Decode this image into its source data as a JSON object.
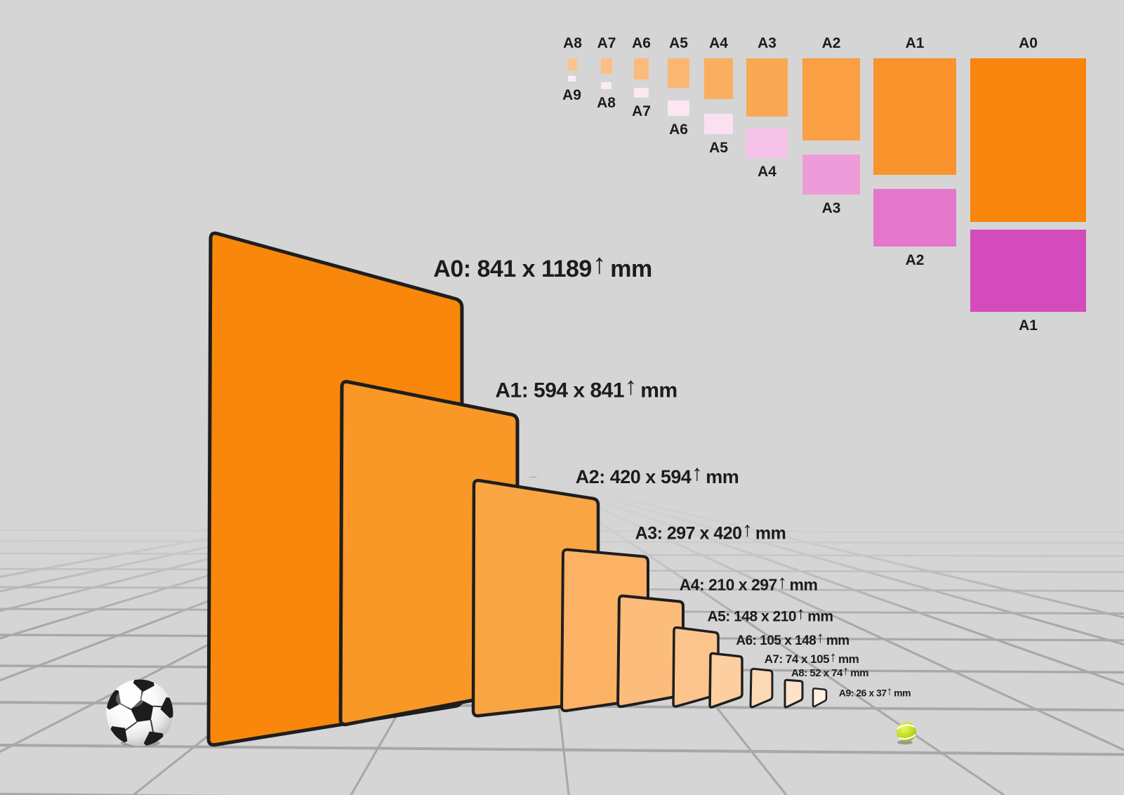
{
  "background_color": "#d5d5d5",
  "text_color": "#1c1c1c",
  "outline_color": "#1e1e1e",
  "grid_color": "#a8a8a8",
  "unit_label": "mm",
  "arrow_glyph": "↑",
  "main_sheets": [
    {
      "name": "A0",
      "width_mm": 841,
      "height_mm": 1189,
      "label": "A0: 841 x 1189",
      "color": "#F8870B"
    },
    {
      "name": "A1",
      "width_mm": 594,
      "height_mm": 841,
      "label": "A1: 594 x 841",
      "color": "#F99827"
    },
    {
      "name": "A2",
      "width_mm": 420,
      "height_mm": 594,
      "label": "A2: 420 x 594",
      "color": "#FAA544"
    },
    {
      "name": "A3",
      "width_mm": 297,
      "height_mm": 420,
      "label": "A3: 297 x 420",
      "color": "#FBB265"
    },
    {
      "name": "A4",
      "width_mm": 210,
      "height_mm": 297,
      "label": "A4: 210 x 297",
      "color": "#FCBC7C"
    },
    {
      "name": "A5",
      "width_mm": 148,
      "height_mm": 210,
      "label": "A5: 148 x 210",
      "color": "#FCC48D"
    },
    {
      "name": "A6",
      "width_mm": 105,
      "height_mm": 148,
      "label": "A6: 105 x 148",
      "color": "#FDCE9F"
    },
    {
      "name": "A7",
      "width_mm": 74,
      "height_mm": 105,
      "label": "A7: 74 x 105",
      "color": "#FDD8B4"
    },
    {
      "name": "A8",
      "width_mm": 52,
      "height_mm": 74,
      "label": "A8: 52 x 74",
      "color": "#FEE3CA"
    },
    {
      "name": "A9",
      "width_mm": 26,
      "height_mm": 37,
      "label": "A9: 26 x 37",
      "color": "#FEEFDE"
    }
  ],
  "size_panel": {
    "columns": [
      {
        "portrait": "A8",
        "portrait_color": "#FCC38B",
        "landscape": "A9",
        "landscape_color": "#FCEDF8"
      },
      {
        "portrait": "A7",
        "portrait_color": "#FCBF83",
        "landscape": "A8",
        "landscape_color": "#FBEAF5"
      },
      {
        "portrait": "A6",
        "portrait_color": "#FBBB7B",
        "landscape": "A7",
        "landscape_color": "#FBE8F3"
      },
      {
        "portrait": "A5",
        "portrait_color": "#FBB674",
        "landscape": "A6",
        "landscape_color": "#FBE6F2"
      },
      {
        "portrait": "A4",
        "portrait_color": "#FAAF60",
        "landscape": "A5",
        "landscape_color": "#FAE0F0"
      },
      {
        "portrait": "A3",
        "portrait_color": "#F9A854",
        "landscape": "A4",
        "landscape_color": "#F6C2E9"
      },
      {
        "portrait": "A2",
        "portrait_color": "#FA9F44",
        "landscape": "A3",
        "landscape_color": "#EE9CD9"
      },
      {
        "portrait": "A1",
        "portrait_color": "#F9932B",
        "landscape": "A2",
        "landscape_color": "#E377CB"
      },
      {
        "portrait": "A0",
        "portrait_color": "#F8860D",
        "landscape": "A1",
        "landscape_color": "#D44CBC"
      }
    ]
  },
  "objects": [
    {
      "name": "soccer-ball"
    },
    {
      "name": "tennis-ball"
    }
  ]
}
